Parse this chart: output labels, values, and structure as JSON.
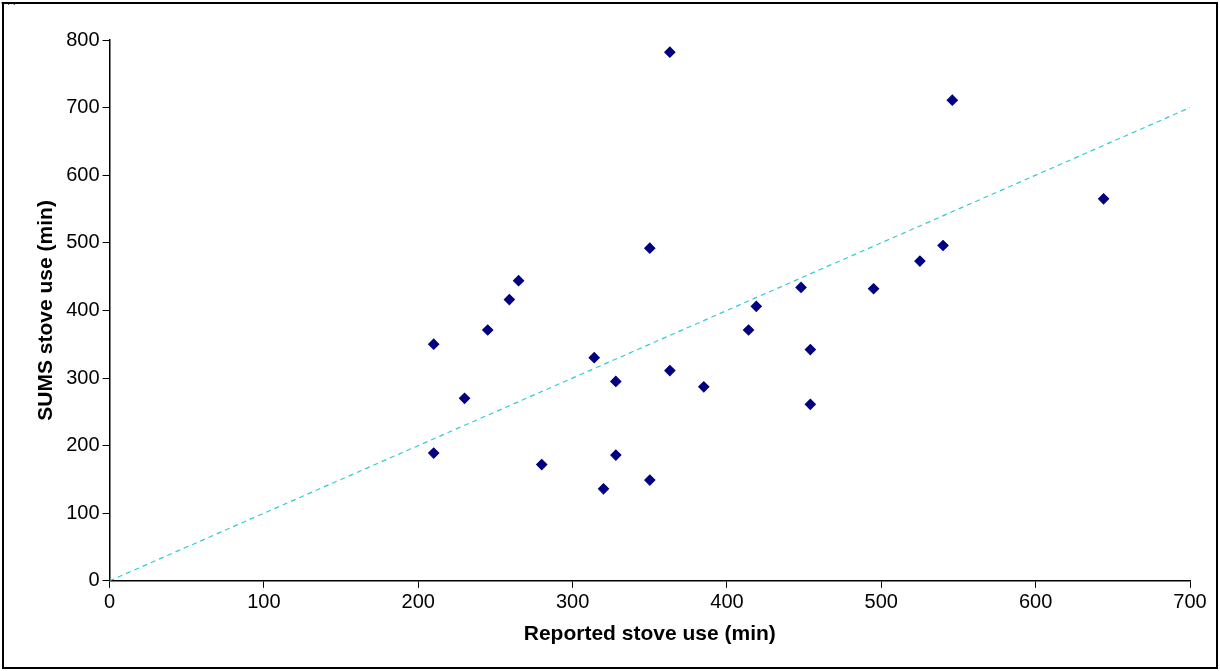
{
  "chart_data": {
    "type": "scatter",
    "xlabel": "Reported stove use (min)",
    "ylabel": "SUMS stove use (min)",
    "xlim": [
      0,
      700
    ],
    "xticks": [
      0,
      100,
      200,
      300,
      400,
      500,
      600,
      700
    ],
    "ylim": [
      0,
      800
    ],
    "yticks": [
      0,
      100,
      200,
      300,
      400,
      500,
      600,
      700,
      800
    ],
    "grid": false,
    "legend": false,
    "marker": "diamond",
    "series": [
      {
        "color": "#000080",
        "x": [
          210,
          210,
          230,
          245,
          259,
          265,
          280,
          314,
          320,
          328,
          328,
          350,
          350,
          363,
          363,
          385,
          414,
          419,
          448,
          454,
          454,
          495,
          525,
          540,
          546,
          644
        ],
        "values": [
          350,
          189,
          270,
          371,
          416,
          444,
          172,
          330,
          136,
          295,
          186,
          492,
          149,
          782,
          311,
          287,
          371,
          406,
          434,
          342,
          261,
          432,
          473,
          496,
          711,
          565
        ]
      },
      {
        "type": "line",
        "color": "#33cccc",
        "line_style": "dashed",
        "marker": "none",
        "x": [
          0,
          700
        ],
        "values": [
          0,
          700
        ]
      }
    ]
  }
}
